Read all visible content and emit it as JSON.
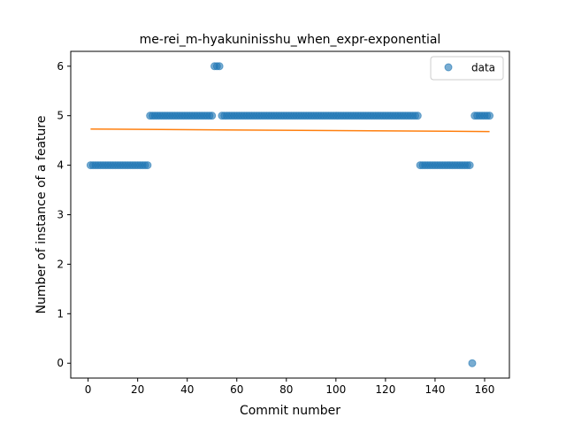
{
  "chart_data": {
    "type": "scatter",
    "title": "me-rei_m-hyakuninisshu_when_expr-exponential",
    "xlabel": "Commit number",
    "ylabel": "Number of instance of a feature",
    "xlim": [
      -7,
      170
    ],
    "ylim": [
      -0.3,
      6.3
    ],
    "xticks": [
      0,
      20,
      40,
      60,
      80,
      100,
      120,
      140,
      160
    ],
    "yticks": [
      0,
      1,
      2,
      3,
      4,
      5,
      6
    ],
    "legend": {
      "position": "top-right",
      "label": "data"
    },
    "grid": false,
    "colors": {
      "points": "#1f77b4",
      "fit": "#ff7f0e"
    },
    "runs": [
      {
        "x_start": 1,
        "x_end": 24,
        "y": 4
      },
      {
        "x_start": 25,
        "x_end": 50,
        "y": 5
      },
      {
        "x_start": 51,
        "x_end": 53,
        "y": 6
      },
      {
        "x_start": 54,
        "x_end": 133,
        "y": 5
      },
      {
        "x_start": 134,
        "x_end": 154,
        "y": 4
      },
      {
        "x_start": 155,
        "x_end": 155,
        "y": 0
      },
      {
        "x_start": 156,
        "x_end": 162,
        "y": 5
      }
    ],
    "fit_line": {
      "x": [
        1,
        162
      ],
      "y": [
        4.73,
        4.68
      ]
    }
  }
}
